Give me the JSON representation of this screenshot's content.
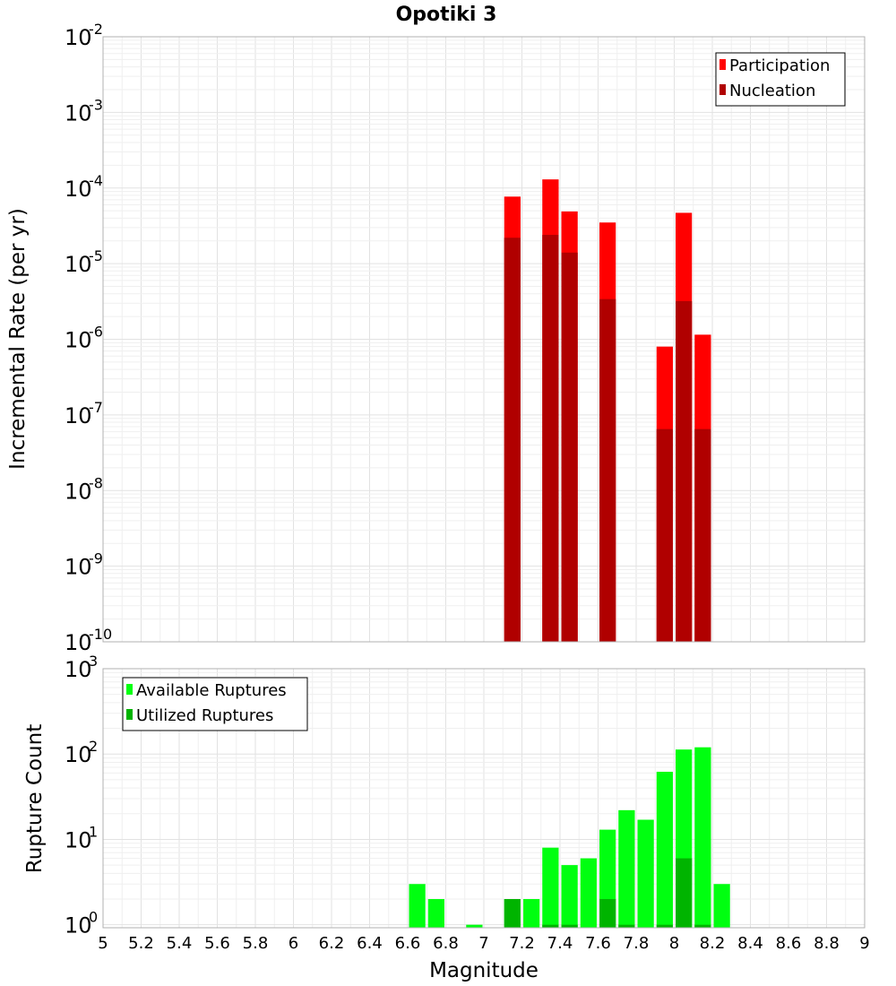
{
  "title": "Opotiki 3",
  "colors": {
    "participation": "#ff0000",
    "nucleation": "#b00000",
    "available": "#00ff10",
    "utilized": "#00b400",
    "grid_major": "#e2e2e2",
    "grid_minor": "#efefef",
    "frame": "#b0b0b0"
  },
  "xaxis": {
    "label": "Magnitude",
    "range": [
      5,
      9
    ],
    "ticks": [
      {
        "v": 5,
        "t": "5"
      },
      {
        "v": 5.2,
        "t": "5.2"
      },
      {
        "v": 5.4,
        "t": "5.4"
      },
      {
        "v": 5.6,
        "t": "5.6"
      },
      {
        "v": 5.8,
        "t": "5.8"
      },
      {
        "v": 6,
        "t": "6"
      },
      {
        "v": 6.2,
        "t": "6.2"
      },
      {
        "v": 6.4,
        "t": "6.4"
      },
      {
        "v": 6.6,
        "t": "6.6"
      },
      {
        "v": 6.8,
        "t": "6.8"
      },
      {
        "v": 7,
        "t": "7"
      },
      {
        "v": 7.2,
        "t": "7.2"
      },
      {
        "v": 7.4,
        "t": "7.4"
      },
      {
        "v": 7.6,
        "t": "7.6"
      },
      {
        "v": 7.8,
        "t": "7.8"
      },
      {
        "v": 8,
        "t": "8"
      },
      {
        "v": 8.2,
        "t": "8.2"
      },
      {
        "v": 8.4,
        "t": "8.4"
      },
      {
        "v": 8.6,
        "t": "8.6"
      },
      {
        "v": 8.8,
        "t": "8.8"
      },
      {
        "v": 9,
        "t": "9"
      }
    ]
  },
  "chart_data": [
    {
      "type": "bar",
      "scale": "log",
      "ylabel": "Incremental Rate (per yr)",
      "ylim_exp": [
        -10,
        -2
      ],
      "yticks": [
        {
          "e": -2,
          "base": "10",
          "exp": "-2"
        },
        {
          "e": -3,
          "base": "10",
          "exp": "-3"
        },
        {
          "e": -4,
          "base": "10",
          "exp": "-4"
        },
        {
          "e": -5,
          "base": "10",
          "exp": "-5"
        },
        {
          "e": -6,
          "base": "10",
          "exp": "-6"
        },
        {
          "e": -7,
          "base": "10",
          "exp": "-7"
        },
        {
          "e": -8,
          "base": "10",
          "exp": "-8"
        },
        {
          "e": -9,
          "base": "10",
          "exp": "-9"
        },
        {
          "e": -10,
          "base": "10",
          "exp": "-10"
        }
      ],
      "bin_width": 0.1,
      "x": [
        7.15,
        7.35,
        7.45,
        7.65,
        7.95,
        8.05,
        8.15
      ],
      "series": [
        {
          "name": "Participation",
          "color_key": "participation",
          "values": [
            7.7e-05,
            0.00013,
            4.9e-05,
            3.5e-05,
            8e-07,
            4.7e-05,
            1.15e-06
          ]
        },
        {
          "name": "Nucleation",
          "color_key": "nucleation",
          "values": [
            2.2e-05,
            2.4e-05,
            1.4e-05,
            3.4e-06,
            6.5e-08,
            3.2e-06,
            6.5e-08
          ]
        }
      ],
      "legend": {
        "position": "top-right",
        "entries": [
          {
            "label": "Participation",
            "color_key": "participation"
          },
          {
            "label": "Nucleation",
            "color_key": "nucleation"
          }
        ]
      }
    },
    {
      "type": "bar",
      "scale": "log",
      "ylabel": "Rupture Count",
      "ylim_exp": [
        -0.035,
        3
      ],
      "yticks": [
        {
          "e": 3,
          "base": "10",
          "exp": "3"
        },
        {
          "e": 2,
          "base": "10",
          "exp": "2"
        },
        {
          "e": 1,
          "base": "10",
          "exp": "1"
        },
        {
          "e": 0,
          "base": "10",
          "exp": "0"
        }
      ],
      "bin_width": 0.1,
      "x": [
        6.65,
        6.75,
        6.95,
        7.15,
        7.25,
        7.35,
        7.45,
        7.55,
        7.65,
        7.75,
        7.85,
        7.95,
        8.05,
        8.15,
        8.25
      ],
      "series": [
        {
          "name": "Available Ruptures",
          "color_key": "available",
          "values": [
            3,
            2,
            1,
            2,
            2,
            8,
            5,
            6,
            13,
            22,
            17,
            62,
            113,
            120,
            3
          ]
        },
        {
          "name": "Utilized Ruptures",
          "color_key": "utilized",
          "values": [
            0,
            0,
            0,
            2,
            0,
            1,
            1,
            0,
            2,
            1,
            0,
            1,
            6,
            1,
            0
          ]
        }
      ],
      "legend": {
        "position": "top-left",
        "entries": [
          {
            "label": "Available Ruptures",
            "color_key": "available"
          },
          {
            "label": "Utilized Ruptures",
            "color_key": "utilized"
          }
        ]
      }
    }
  ]
}
